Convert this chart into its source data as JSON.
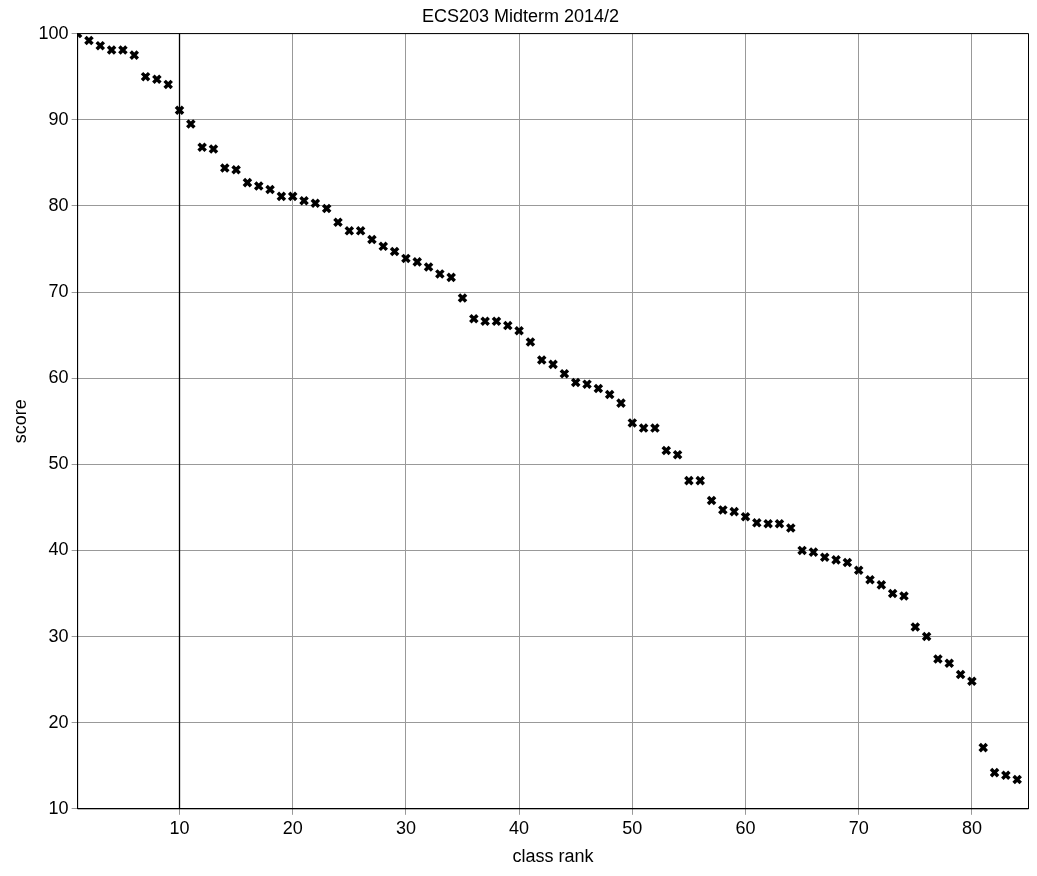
{
  "chart_data": {
    "type": "scatter",
    "title": "ECS203 Midterm 2014/2",
    "xlabel": "class rank",
    "ylabel": "score",
    "x": [
      1,
      2,
      3,
      4,
      5,
      6,
      7,
      8,
      9,
      10,
      11,
      12,
      13,
      14,
      15,
      16,
      17,
      18,
      19,
      20,
      21,
      22,
      23,
      24,
      25,
      26,
      27,
      28,
      29,
      30,
      31,
      32,
      33,
      34,
      35,
      36,
      37,
      38,
      39,
      40,
      41,
      42,
      43,
      44,
      45,
      46,
      47,
      48,
      49,
      50,
      51,
      52,
      53,
      54,
      55,
      56,
      57,
      58,
      59,
      60,
      61,
      62,
      63,
      64,
      65,
      66,
      67,
      68,
      69,
      70,
      71,
      72,
      73,
      74,
      75,
      76,
      77,
      78,
      79,
      80,
      81,
      82,
      83,
      84
    ],
    "series": [
      {
        "color": "#000000",
        "values": [
          100,
          99.2,
          98.6,
          98.1,
          98.1,
          97.5,
          95,
          94.7,
          94.1,
          91.1,
          89.5,
          86.8,
          86.6,
          84.4,
          84.2,
          82.7,
          82.3,
          81.9,
          81.1,
          81.1,
          80.6,
          80.3,
          79.7,
          78.1,
          77.1,
          77.1,
          76.1,
          75.3,
          74.7,
          73.9,
          73.5,
          72.9,
          72.1,
          71.7,
          69.3,
          66.9,
          66.6,
          66.6,
          66.1,
          65.5,
          64.2,
          62.1,
          61.6,
          60.5,
          59.5,
          59.3,
          58.8,
          58.1,
          57.1,
          54.8,
          54.2,
          54.2,
          51.6,
          51.1,
          48.1,
          48.1,
          45.8,
          44.7,
          44.5,
          43.9,
          43.2,
          43.1,
          43.1,
          42.6,
          40,
          39.8,
          39.2,
          38.9,
          38.6,
          37.7,
          36.6,
          36,
          35,
          34.7,
          31.1,
          30,
          27.4,
          26.9,
          25.6,
          24.8,
          17.1,
          14.2,
          13.9,
          13.4
        ]
      }
    ],
    "xlim": [
      1,
      85
    ],
    "xticks": [
      10,
      20,
      30,
      40,
      50,
      60,
      70,
      80
    ],
    "ylim": [
      10,
      100
    ],
    "yticks": [
      10,
      20,
      30,
      40,
      50,
      60,
      70,
      80,
      90,
      100
    ],
    "ref_lines": [
      {
        "axis": "x",
        "value": 10,
        "color": "#000000",
        "line_style": "solid"
      }
    ],
    "grid": true,
    "legend": false,
    "marker": "cross"
  }
}
